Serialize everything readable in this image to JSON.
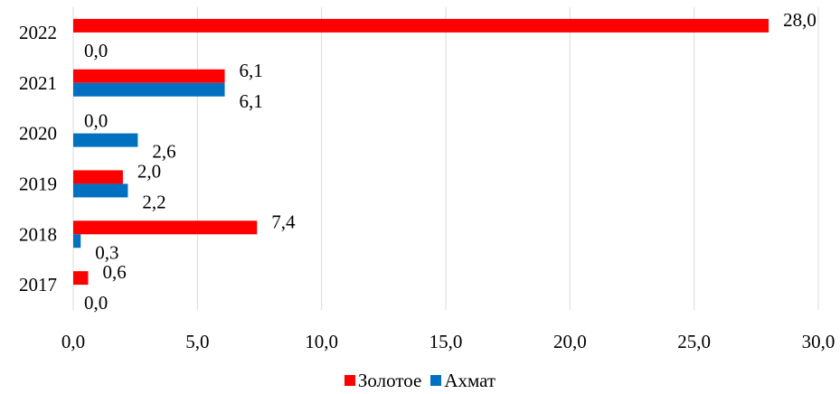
{
  "chart_data": {
    "type": "bar",
    "orientation": "horizontal",
    "categories": [
      "2017",
      "2018",
      "2019",
      "2020",
      "2021",
      "2022"
    ],
    "series": [
      {
        "name": "Золотое",
        "color": "#ff0000",
        "values": [
          0.6,
          7.4,
          2.0,
          0.0,
          6.1,
          28.0
        ],
        "labels": [
          "0,6",
          "7,4",
          "2,0",
          "0,0",
          "6,1",
          "28,0"
        ]
      },
      {
        "name": "Ахмат",
        "color": "#0070c0",
        "values": [
          0.0,
          0.3,
          2.2,
          2.6,
          6.1,
          0.0
        ],
        "labels": [
          "0,0",
          "0,3",
          "2,2",
          "2,6",
          "6,1",
          "0,0"
        ]
      }
    ],
    "xlim": [
      0,
      30
    ],
    "xticks": [
      0,
      5,
      10,
      15,
      20,
      25,
      30
    ],
    "xtick_labels": [
      "0,0",
      "5,0",
      "10,0",
      "15,0",
      "20,0",
      "25,0",
      "30,0"
    ],
    "grid": "vertical",
    "gridline_color": "#d9d9d9",
    "legend_position": "bottom"
  }
}
